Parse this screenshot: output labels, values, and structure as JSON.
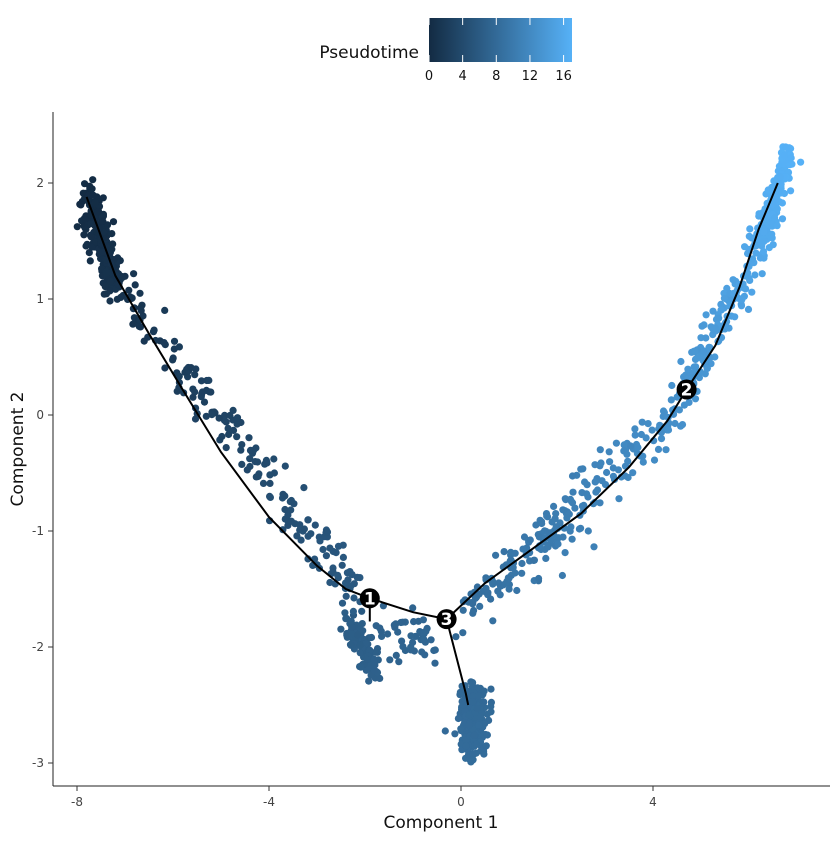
{
  "chart_data": {
    "type": "scatter",
    "xlabel": "Component 1",
    "ylabel": "Component 2",
    "xlim": [
      -8.5,
      7.7
    ],
    "ylim": [
      -3.2,
      2.6
    ],
    "x_ticks": [
      -8,
      -4,
      0,
      4
    ],
    "y_ticks": [
      2,
      1,
      0,
      -1,
      -2,
      -3
    ],
    "x_tick_labels": [
      "-8",
      "-4",
      "0",
      "4"
    ],
    "y_tick_labels": [
      "2",
      "1",
      "0",
      "-1",
      "-2",
      "-3"
    ],
    "grid": false,
    "legend": {
      "title": "Pseudotime",
      "placement": "top",
      "range": [
        0,
        17
      ],
      "ticks": [
        0,
        4,
        8,
        12,
        16
      ],
      "tick_labels": [
        "0",
        "4",
        "8",
        "12",
        "16"
      ],
      "color_low": "#132B43",
      "color_high": "#56B1F7"
    },
    "trajectory": [
      [
        [
          -7.8,
          1.88
        ],
        [
          -7.2,
          1.2
        ],
        [
          -6.5,
          0.7
        ],
        [
          -5.8,
          0.22
        ],
        [
          -5.0,
          -0.32
        ],
        [
          -4.0,
          -0.88
        ],
        [
          -3.0,
          -1.3
        ],
        [
          -2.4,
          -1.5
        ],
        [
          -1.9,
          -1.58
        ],
        [
          -1.0,
          -1.7
        ],
        [
          -0.3,
          -1.76
        ]
      ],
      [
        [
          -0.3,
          -1.76
        ],
        [
          0.1,
          -2.4
        ],
        [
          0.15,
          -2.5
        ]
      ],
      [
        [
          -0.3,
          -1.76
        ],
        [
          0.5,
          -1.45
        ],
        [
          1.5,
          -1.15
        ],
        [
          2.5,
          -0.85
        ],
        [
          3.5,
          -0.45
        ],
        [
          4.3,
          -0.05
        ],
        [
          4.7,
          0.22
        ],
        [
          5.3,
          0.6
        ],
        [
          5.8,
          1.1
        ],
        [
          6.2,
          1.6
        ],
        [
          6.6,
          2.0
        ]
      ],
      [
        [
          -1.9,
          -1.58
        ],
        [
          -1.9,
          -1.78
        ]
      ]
    ],
    "branch_points": [
      {
        "label": "1",
        "x": -1.9,
        "y": -1.58
      },
      {
        "label": "2",
        "x": 4.7,
        "y": 0.22
      },
      {
        "label": "3",
        "x": -0.3,
        "y": -1.76
      }
    ],
    "point_groups": [
      {
        "from": [
          -7.8,
          1.9
        ],
        "to": [
          -7.2,
          1.1
        ],
        "n": 220,
        "jitter": [
          0.12,
          0.08
        ],
        "pseudotime": [
          0,
          1
        ]
      },
      {
        "from": [
          -7.1,
          1.05
        ],
        "to": [
          -2.1,
          -1.55
        ],
        "n": 190,
        "jitter": [
          0.12,
          0.12
        ],
        "pseudotime": [
          1,
          6
        ]
      },
      {
        "from": [
          -2.3,
          -1.78
        ],
        "to": [
          -1.8,
          -2.2
        ],
        "n": 100,
        "jitter": [
          0.12,
          0.07
        ],
        "pseudotime": [
          6.3,
          6.8
        ]
      },
      {
        "from": [
          -1.6,
          -1.85
        ],
        "to": [
          -0.5,
          -1.95
        ],
        "n": 45,
        "jitter": [
          0.15,
          0.12
        ],
        "pseudotime": [
          7,
          7.5
        ]
      },
      {
        "from": [
          0.25,
          -2.35
        ],
        "to": [
          0.25,
          -2.92
        ],
        "n": 280,
        "jitter": [
          0.13,
          0.04
        ],
        "pseudotime": [
          7.8,
          8.2
        ]
      },
      {
        "from": [
          0.0,
          -1.7
        ],
        "to": [
          4.6,
          0.05
        ],
        "n": 210,
        "jitter": [
          0.12,
          0.1
        ],
        "pseudotime": [
          8.3,
          13
        ]
      },
      {
        "from": [
          1.0,
          -1.5
        ],
        "to": [
          2.8,
          -0.9
        ],
        "n": 22,
        "jitter": [
          0.35,
          0.2
        ],
        "pseudotime": [
          9,
          11
        ]
      },
      {
        "from": [
          4.6,
          0.15
        ],
        "to": [
          6.3,
          1.55
        ],
        "n": 160,
        "jitter": [
          0.12,
          0.08
        ],
        "pseudotime": [
          13,
          16
        ]
      },
      {
        "from": [
          6.3,
          1.5
        ],
        "to": [
          6.8,
          2.25
        ],
        "n": 170,
        "jitter": [
          0.1,
          0.06
        ],
        "pseudotime": [
          16,
          17
        ]
      }
    ]
  }
}
